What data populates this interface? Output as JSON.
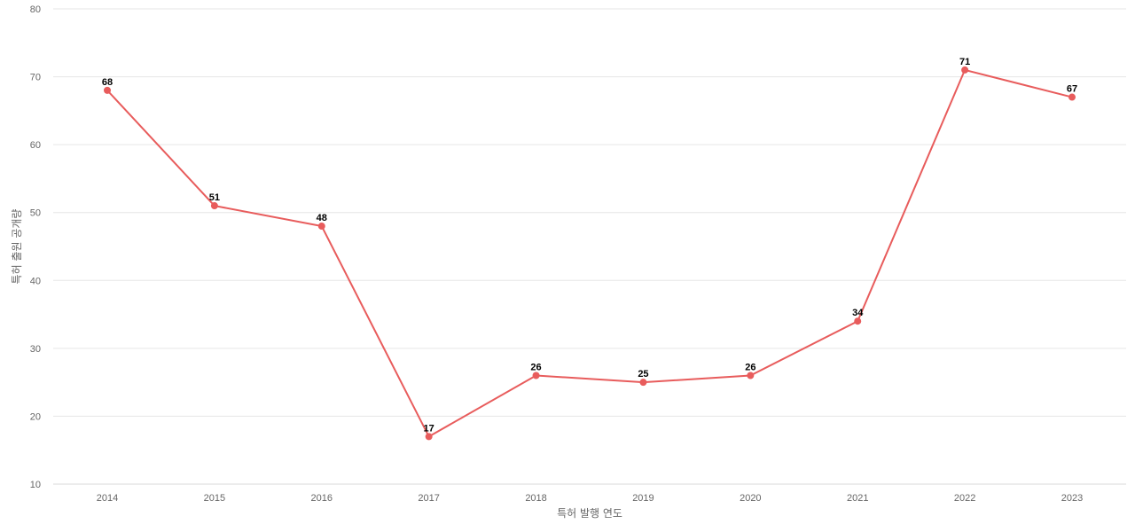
{
  "chart_data": {
    "type": "line",
    "x": [
      "2014",
      "2015",
      "2016",
      "2017",
      "2018",
      "2019",
      "2020",
      "2021",
      "2022",
      "2023"
    ],
    "series": [
      {
        "values": [
          68,
          51,
          48,
          17,
          26,
          25,
          26,
          34,
          71,
          67
        ],
        "color": "#e85c5c"
      }
    ],
    "xlabel": "특허 발행 연도",
    "ylabel": "특허 출원 공개량",
    "ylim": [
      10,
      80
    ],
    "yticks": [
      10,
      20,
      30,
      40,
      50,
      60,
      70,
      80
    ],
    "grid": true,
    "data_labels": true
  }
}
